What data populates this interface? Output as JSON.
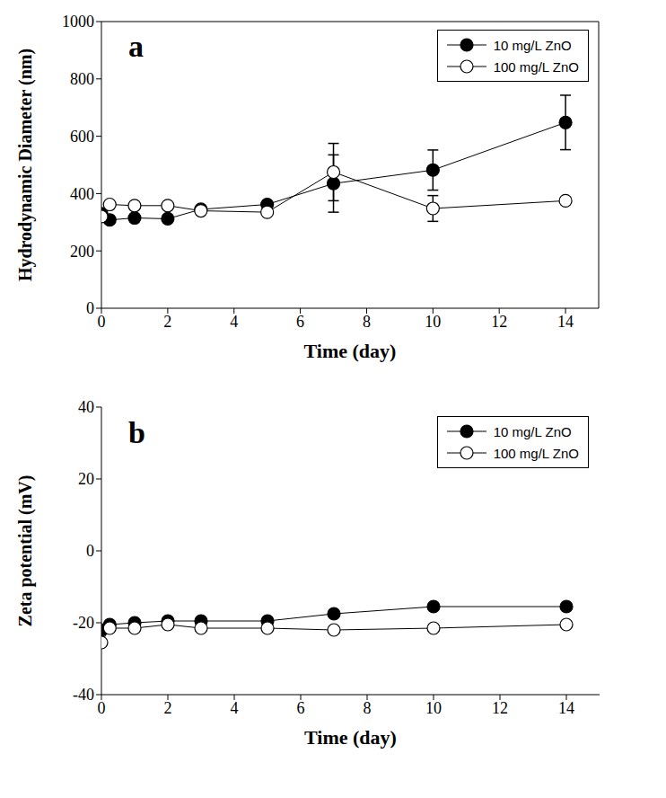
{
  "chart_data": [
    {
      "type": "line",
      "annotation": "a",
      "x_label": "Time (day)",
      "y_label": "Hydrodynamic Diameter (nm)",
      "xlim": [
        0,
        15
      ],
      "xticks": [
        0,
        2,
        4,
        6,
        8,
        10,
        12,
        14
      ],
      "ylim": [
        0,
        1000
      ],
      "yticks": [
        0,
        200,
        400,
        600,
        800,
        1000
      ],
      "legend": "upper right",
      "x": [
        0,
        0.25,
        1,
        2,
        3,
        5,
        7,
        10,
        14
      ],
      "series": [
        {
          "name": "10 mg/L ZnO",
          "color": "#000000",
          "marker": "filled",
          "values": [
            330,
            308,
            315,
            312,
            345,
            362,
            435,
            482,
            648
          ],
          "errors": [
            null,
            null,
            null,
            null,
            null,
            null,
            100,
            70,
            95
          ]
        },
        {
          "name": "100 mg/L ZnO",
          "color": "#000000",
          "marker": "open",
          "values": [
            320,
            362,
            358,
            358,
            340,
            335,
            475,
            348,
            375
          ],
          "errors": [
            null,
            null,
            null,
            null,
            null,
            null,
            100,
            45,
            null
          ]
        }
      ]
    },
    {
      "type": "line",
      "annotation": "b",
      "x_label": "Time (day)",
      "y_label": "Zeta potential (mV)",
      "xlim": [
        0,
        15
      ],
      "xticks": [
        0,
        2,
        4,
        6,
        8,
        10,
        12,
        14
      ],
      "ylim": [
        -40,
        40
      ],
      "yticks": [
        -40,
        -20,
        0,
        20,
        40
      ],
      "legend": "upper right",
      "x": [
        0,
        0.25,
        1,
        2,
        3,
        5,
        7,
        10,
        14
      ],
      "series": [
        {
          "name": "10 mg/L ZnO",
          "color": "#000000",
          "marker": "filled",
          "values": [
            -22,
            -20.5,
            -20,
            -19.5,
            -19.5,
            -19.5,
            -17.5,
            -15.5,
            -15.5
          ]
        },
        {
          "name": "100 mg/L ZnO",
          "color": "#000000",
          "marker": "open",
          "values": [
            -25.5,
            -21.5,
            -21.5,
            -20.5,
            -21.5,
            -21.5,
            -22,
            -21.5,
            -20.5
          ]
        }
      ]
    }
  ]
}
